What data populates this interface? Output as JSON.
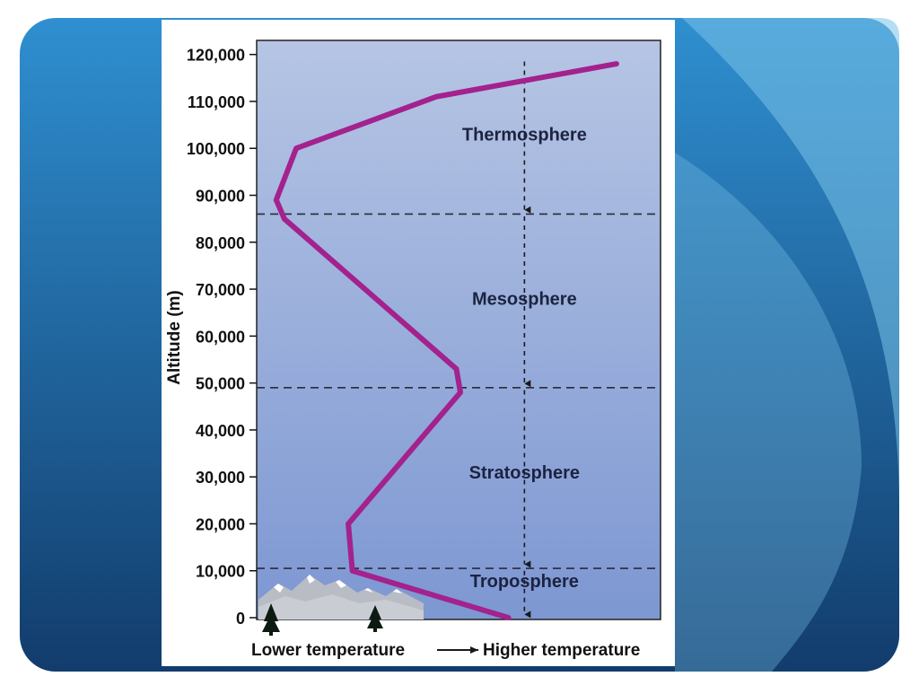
{
  "slide": {
    "colors": {
      "frame_light": "#7ac3e8",
      "frame_mid": "#2f8fd0",
      "frame_dark": "#123c6c",
      "panel": "#ffffff",
      "plot_top": "#b6c5e4",
      "plot_bottom": "#7d97d2",
      "curve": "#a3228e",
      "boundary": "#2a2a3a"
    }
  },
  "chart_data": {
    "type": "line",
    "title": "",
    "ylabel": "Altitude (m)",
    "xlabel": {
      "left": "Lower temperature",
      "right": "Higher temperature"
    },
    "ylim": [
      0,
      123000
    ],
    "xlim": [
      0,
      1
    ],
    "y_ticks": [
      {
        "value": 0,
        "label": "0"
      },
      {
        "value": 10000,
        "label": "10,000"
      },
      {
        "value": 20000,
        "label": "20,000"
      },
      {
        "value": 30000,
        "label": "30,000"
      },
      {
        "value": 40000,
        "label": "40,000"
      },
      {
        "value": 50000,
        "label": "50,000"
      },
      {
        "value": 60000,
        "label": "60,000"
      },
      {
        "value": 70000,
        "label": "70,000"
      },
      {
        "value": 80000,
        "label": "80,000"
      },
      {
        "value": 90000,
        "label": "90,000"
      },
      {
        "value": 100000,
        "label": "100,000"
      },
      {
        "value": 110000,
        "label": "110,000"
      },
      {
        "value": 120000,
        "label": "120,000"
      }
    ],
    "series": [
      {
        "points": [
          {
            "x": 0.62,
            "y": 0
          },
          {
            "x": 0.23,
            "y": 10000
          },
          {
            "x": 0.22,
            "y": 20000
          },
          {
            "x": 0.5,
            "y": 48000
          },
          {
            "x": 0.49,
            "y": 53000
          },
          {
            "x": 0.06,
            "y": 85000
          },
          {
            "x": 0.04,
            "y": 89000
          },
          {
            "x": 0.09,
            "y": 100000
          },
          {
            "x": 0.44,
            "y": 111000
          },
          {
            "x": 0.89,
            "y": 118000
          }
        ]
      }
    ],
    "boundaries": [
      10500,
      49000,
      86000
    ],
    "layers": [
      {
        "name": "Troposphere",
        "y": 7800
      },
      {
        "name": "Stratosphere",
        "y": 31000
      },
      {
        "name": "Mesosphere",
        "y": 68000
      },
      {
        "name": "Thermosphere",
        "y": 103000
      }
    ],
    "arrows": [
      {
        "from": 118500,
        "to": 86500
      },
      {
        "from": 85500,
        "to": 49500
      },
      {
        "from": 48500,
        "to": 11000
      },
      {
        "from": 10000,
        "to": 300
      }
    ],
    "arrow_x": 0.66,
    "landscape": {
      "mountains": "snow-capped-mountain-icon",
      "trees": "pine-tree-icon"
    }
  }
}
